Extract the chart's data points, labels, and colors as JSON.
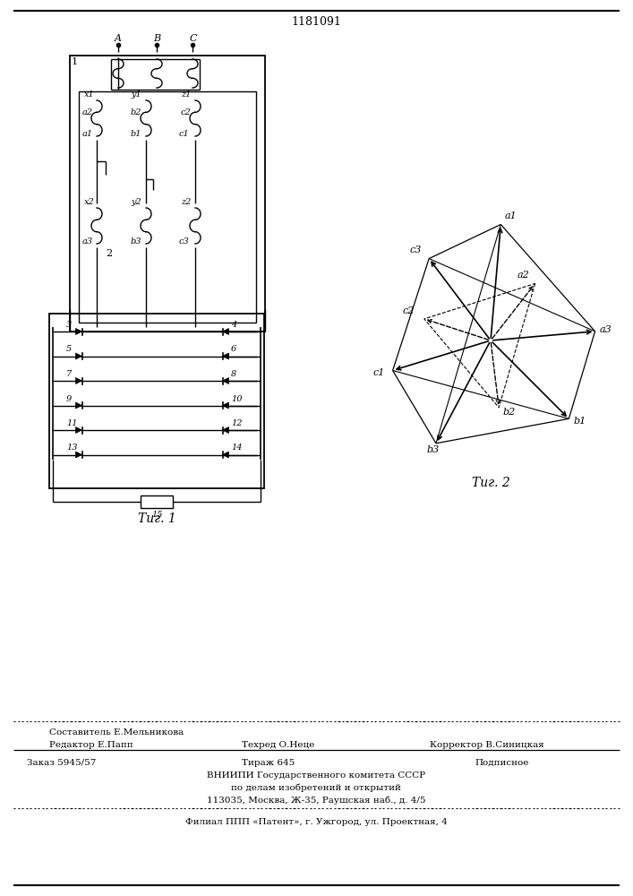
{
  "title": "1181091",
  "fig1_caption": "Τиг. 1",
  "fig2_caption": "Τиг. 2",
  "footer_editor": "Редактор Е.Папп",
  "footer_composer_label": "Составитель Е.Мельникова",
  "footer_techred": "Техред О.Неце",
  "footer_corrector": "Корректор В.Синицкая",
  "footer_order": "Заказ 5945/57",
  "footer_tirazh": "Тираж 645",
  "footer_podp": "Подписное",
  "footer_vniip1": "ВНИИПИ Государственного комитета СССР",
  "footer_vniip2": "по делам изобретений и открытий",
  "footer_addr": "113035, Москва, Ж-35, Раушская наб., д. 4/5",
  "footer_filial": "Филиал ППП «Патент», г. Ужгород, ул. Проектная, 4",
  "bg_color": "#ffffff"
}
